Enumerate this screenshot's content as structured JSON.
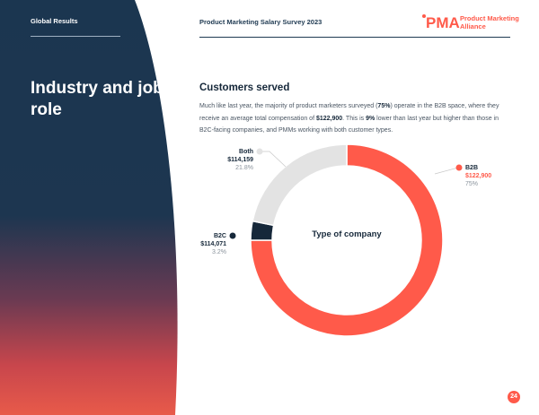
{
  "sidebar": {
    "label": "Global Results",
    "heading": "Industry and job role"
  },
  "header": {
    "survey_title": "Product Marketing Salary Survey 2023",
    "brand_name": "Product Marketing Alliance"
  },
  "content": {
    "title": "Customers served",
    "body": {
      "p1": "Much like last year, the majority of product marketers surveyed (",
      "b2b_share": "75%",
      "p2": ") operate in the B2B space, where they receive an average total compensation of ",
      "b2b_comp": "$122,900",
      "p3": ". This is ",
      "diff": "9%",
      "p4": " lower than last year but higher than those in B2C-facing companies, and PMMs working with both customer types."
    }
  },
  "chart_data": {
    "type": "pie",
    "style": "donut",
    "center_label": "Type of company",
    "segments": [
      {
        "name": "B2B",
        "value_label": "$122,900",
        "value": 122900,
        "percent": 75,
        "percent_label": "75%",
        "color": "#ff5a4a"
      },
      {
        "name": "B2C",
        "value_label": "$114,071",
        "value": 114071,
        "percent": 3.2,
        "percent_label": "3.2%",
        "color": "#16283a"
      },
      {
        "name": "Both",
        "value_label": "$114,159",
        "value": 114159,
        "percent": 21.8,
        "percent_label": "21.8%",
        "color": "#e3e3e3"
      }
    ]
  },
  "footer": {
    "page_number": "24"
  },
  "colors": {
    "accent": "#ff5a4a",
    "navy": "#16283a",
    "light_gray": "#e3e3e3"
  }
}
